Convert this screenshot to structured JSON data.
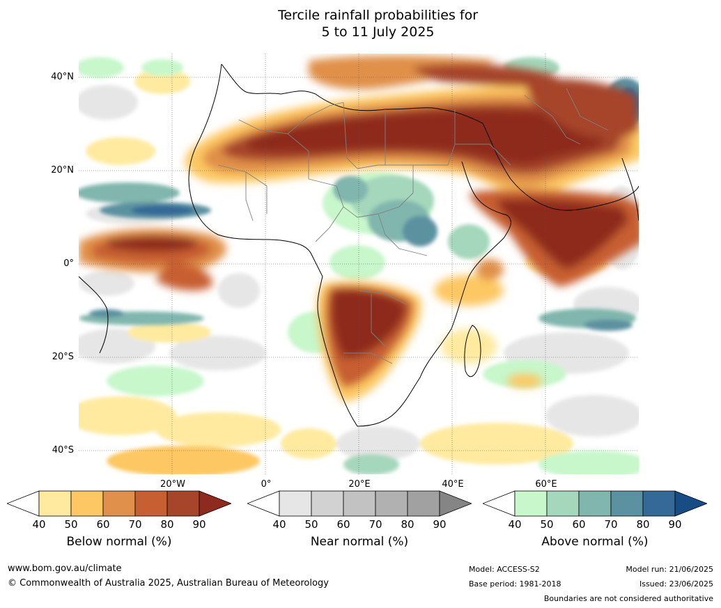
{
  "title": {
    "line1": "Tercile rainfall probabilities for",
    "line2": "5 to 11 July 2025"
  },
  "map": {
    "lat_labels": [
      "40°N",
      "20°N",
      "0°",
      "20°S",
      "40°S"
    ],
    "lon_labels": [
      "20°W",
      "0°",
      "20°E",
      "40°E",
      "60°E"
    ],
    "colors": {
      "ocean_white": "#ffffff",
      "land_line": "#000000",
      "border_line": "#808080",
      "gridline": "#555555"
    }
  },
  "colorbars": [
    {
      "title": "Below normal (%)",
      "ticks": [
        "40",
        "50",
        "60",
        "70",
        "80",
        "90"
      ],
      "colors": [
        "#ffffff",
        "#ffea9f",
        "#fdc864",
        "#e0904a",
        "#c75f33",
        "#a6452a",
        "#8e2b1e"
      ]
    },
    {
      "title": "Near normal (%)",
      "ticks": [
        "40",
        "50",
        "60",
        "70",
        "80",
        "90"
      ],
      "colors": [
        "#ffffff",
        "#e6e6e6",
        "#d2d2d2",
        "#c2c2c2",
        "#b1b1b1",
        "#a1a1a1",
        "#858585"
      ]
    },
    {
      "title": "Above normal (%)",
      "ticks": [
        "40",
        "50",
        "60",
        "70",
        "80",
        "90"
      ],
      "colors": [
        "#ffffff",
        "#c7f7cb",
        "#a4d7bb",
        "#80b6ad",
        "#5b91a0",
        "#356997",
        "#174c84"
      ]
    }
  ],
  "footer": {
    "website": "www.bom.gov.au/climate",
    "copyright": "© Commonwealth of Australia 2025, Australian Bureau of Meteorology",
    "model": "Model: ACCESS-S2",
    "base_period": "Base period: 1981-2018",
    "model_run": "Model run: 21/06/2025",
    "issued": "Issued: 23/06/2025",
    "disclaimer": "Boundaries are not considered authoritative"
  }
}
